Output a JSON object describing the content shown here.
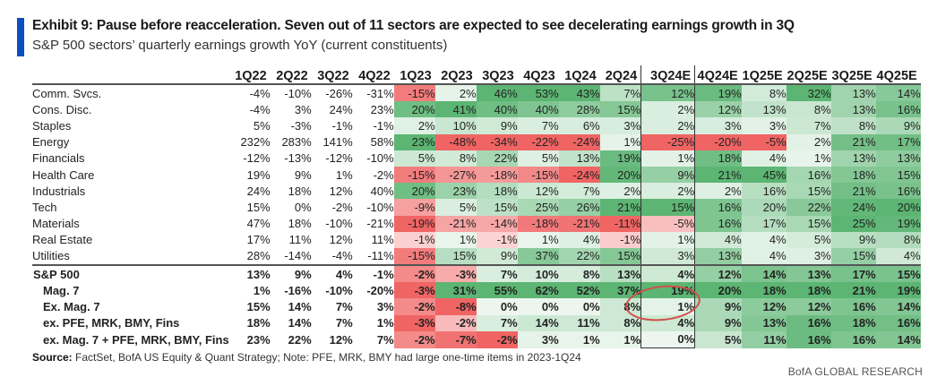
{
  "header": {
    "title": "Exhibit 9: Pause before reacceleration. Seven out of 11 sectors are expected to see decelerating earnings growth in 3Q",
    "subtitle": "S&P 500 sectors’ quarterly earnings growth YoY (current constituents)",
    "accent_color": "#0a4fbf"
  },
  "footer": {
    "source_label": "Source:",
    "source_text": " FactSet, BofA US Equity & Quant Strategy; Note: PFE, MRK, BMY had large one-time items in 2023-1Q24",
    "brand": "BofA GLOBAL RESEARCH"
  },
  "colors": {
    "positive": "#3fa85a",
    "negative": "#ef5c5c",
    "neutral": "#ffffff",
    "annotation_circle": "#d0504a"
  },
  "chart_data": {
    "type": "heatmap",
    "title": "Exhibit 9: Pause before reacceleration. Seven out of 11 sectors are expected to see decelerating earnings growth in 3Q",
    "subtitle": "S&P 500 sectors’ quarterly earnings growth YoY (current constituents)",
    "unit": "%",
    "columns": [
      "1Q22",
      "2Q22",
      "3Q22",
      "4Q22",
      "1Q23",
      "2Q23",
      "3Q23",
      "4Q23",
      "1Q24",
      "2Q24",
      "3Q24E",
      "4Q24E",
      "1Q25E",
      "2Q25E",
      "3Q25E",
      "4Q25E"
    ],
    "heat_columns_from": "1Q23",
    "highlighted_column": "3Q24E",
    "annotation": {
      "row": "Ex. Mag. 7",
      "column": "3Q24E",
      "shape": "circle"
    },
    "rows": [
      {
        "label": "Comm. Svcs.",
        "type": "sector",
        "values": [
          -4,
          -10,
          -26,
          -31,
          -15,
          2,
          46,
          53,
          43,
          7,
          12,
          19,
          8,
          32,
          13,
          14
        ]
      },
      {
        "label": "Cons. Disc.",
        "type": "sector",
        "values": [
          -4,
          3,
          24,
          23,
          20,
          41,
          40,
          40,
          28,
          15,
          2,
          12,
          13,
          8,
          13,
          16
        ]
      },
      {
        "label": "Staples",
        "type": "sector",
        "values": [
          5,
          -3,
          -1,
          -1,
          2,
          10,
          9,
          7,
          6,
          3,
          2,
          3,
          3,
          7,
          8,
          9
        ]
      },
      {
        "label": "Energy",
        "type": "sector",
        "values": [
          232,
          283,
          141,
          58,
          23,
          -48,
          -34,
          -22,
          -24,
          1,
          -25,
          -20,
          -5,
          2,
          21,
          17
        ]
      },
      {
        "label": "Financials",
        "type": "sector",
        "values": [
          -12,
          -13,
          -12,
          -10,
          5,
          8,
          22,
          5,
          13,
          19,
          1,
          18,
          4,
          1,
          13,
          13
        ]
      },
      {
        "label": "Health Care",
        "type": "sector",
        "values": [
          19,
          9,
          1,
          -2,
          -15,
          -27,
          -18,
          -15,
          -24,
          20,
          9,
          21,
          45,
          16,
          18,
          15
        ]
      },
      {
        "label": "Industrials",
        "type": "sector",
        "values": [
          24,
          18,
          12,
          40,
          20,
          23,
          18,
          12,
          7,
          2,
          2,
          2,
          16,
          15,
          21,
          16
        ]
      },
      {
        "label": "Tech",
        "type": "sector",
        "values": [
          15,
          0,
          -2,
          -10,
          -9,
          5,
          15,
          25,
          26,
          21,
          15,
          16,
          20,
          22,
          24,
          20
        ]
      },
      {
        "label": "Materials",
        "type": "sector",
        "values": [
          47,
          18,
          -10,
          -21,
          -19,
          -21,
          -14,
          -18,
          -21,
          -11,
          -5,
          16,
          17,
          15,
          25,
          19
        ]
      },
      {
        "label": "Real Estate",
        "type": "sector",
        "values": [
          17,
          11,
          12,
          11,
          -1,
          1,
          -1,
          1,
          4,
          -1,
          1,
          4,
          4,
          5,
          9,
          8
        ]
      },
      {
        "label": "Utilities",
        "type": "sector",
        "values": [
          28,
          -14,
          -4,
          -11,
          -15,
          15,
          9,
          37,
          22,
          15,
          3,
          13,
          4,
          3,
          15,
          4
        ]
      },
      {
        "label": "S&P 500",
        "type": "aggregate",
        "values": [
          13,
          9,
          4,
          -1,
          -2,
          -3,
          7,
          10,
          8,
          13,
          4,
          12,
          14,
          13,
          17,
          15
        ]
      },
      {
        "label": "Mag. 7",
        "type": "aggregate-sub",
        "values": [
          1,
          -16,
          -10,
          -20,
          -3,
          31,
          55,
          62,
          52,
          37,
          19,
          20,
          18,
          18,
          21,
          19
        ]
      },
      {
        "label": "Ex. Mag. 7",
        "type": "aggregate-sub",
        "values": [
          15,
          14,
          7,
          3,
          -2,
          -8,
          0,
          0,
          0,
          8,
          1,
          9,
          12,
          12,
          16,
          14
        ]
      },
      {
        "label": "ex. PFE, MRK, BMY, Fins",
        "type": "aggregate-sub",
        "values": [
          18,
          14,
          7,
          1,
          -3,
          -2,
          7,
          14,
          11,
          8,
          4,
          9,
          13,
          16,
          18,
          16
        ]
      },
      {
        "label": "ex. Mag. 7 + PFE, MRK, BMY, Fins",
        "type": "aggregate-sub",
        "values": [
          23,
          22,
          12,
          7,
          -2,
          -7,
          -2,
          3,
          1,
          1,
          0,
          5,
          11,
          16,
          16,
          14
        ]
      }
    ]
  }
}
